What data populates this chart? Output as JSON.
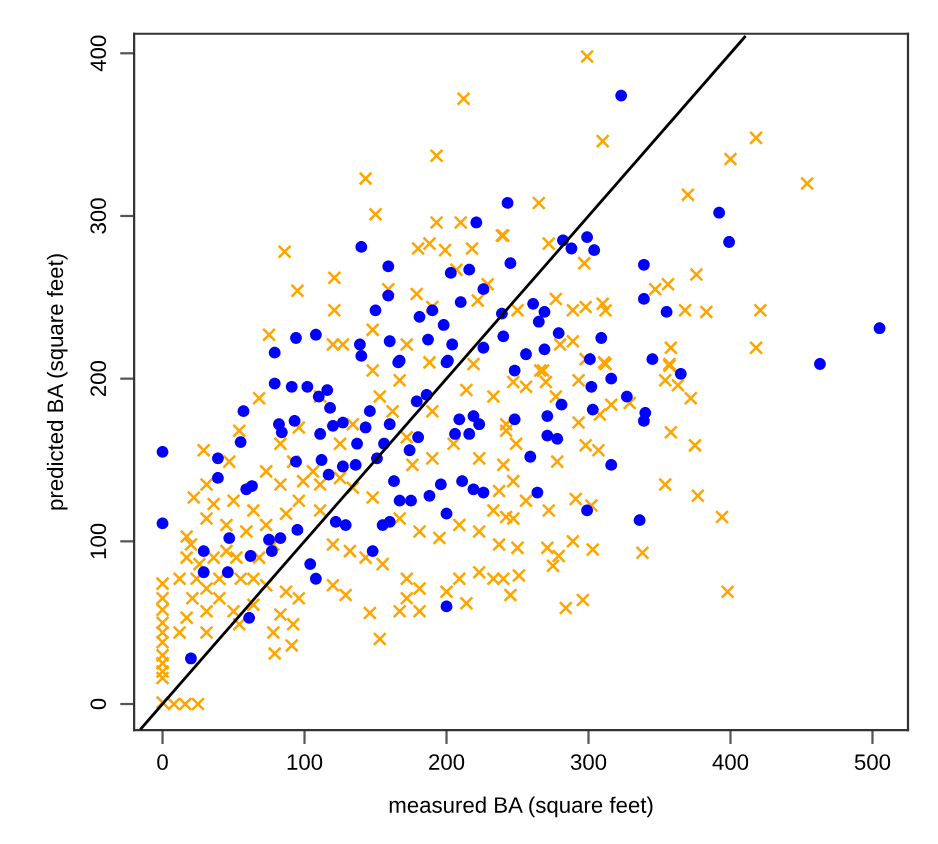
{
  "chart_data": {
    "type": "scatter",
    "xlabel": "measured BA (square feet)",
    "ylabel": "predicted BA (square feet)",
    "xlim": [
      -20,
      525
    ],
    "ylim": [
      -16,
      412
    ],
    "xticks": [
      0,
      100,
      200,
      300,
      400,
      500
    ],
    "yticks": [
      0,
      100,
      200,
      300,
      400
    ],
    "grid": false,
    "series": [
      {
        "marker": "cross",
        "color": "#ffa500",
        "x": [
          212,
          193,
          143,
          150,
          86,
          95,
          121,
          121,
          193,
          210,
          239,
          180,
          188,
          199,
          218,
          207,
          159,
          179,
          190,
          222,
          229,
          75,
          120,
          127,
          148,
          172,
          188,
          219,
          299,
          310,
          265,
          240,
          272,
          297,
          418,
          400,
          370,
          454,
          376,
          356,
          347,
          368,
          383,
          421,
          277,
          250,
          289,
          298,
          310,
          312,
          280,
          289,
          358,
          418,
          298,
          311,
          357,
          268,
          266,
          270,
          247,
          256,
          277,
          293,
          312,
          357,
          354,
          363,
          372,
          308,
          316,
          329,
          293,
          242,
          249,
          298,
          307,
          358,
          375,
          278,
          240,
          247,
          354,
          377,
          394,
          256,
          291,
          302,
          272,
          242,
          289,
          303,
          338,
          250,
          271,
          279,
          275,
          251,
          240,
          245,
          296,
          284,
          398,
          0,
          0,
          0,
          0,
          0,
          0,
          0,
          0,
          0,
          0,
          0,
          8,
          16,
          25,
          17,
          20,
          29,
          47,
          31,
          36,
          50,
          54,
          68,
          83,
          92,
          106,
          125,
          111,
          96,
          87,
          120,
          132,
          143,
          155,
          172,
          181,
          167,
          146,
          153,
          129,
          120,
          79,
          91,
          78,
          92,
          83,
          64,
          50,
          40,
          31,
          21,
          17,
          12,
          24,
          40,
          55,
          64,
          73,
          87,
          96,
          52,
          68,
          78,
          59,
          73,
          64,
          83,
          99,
          111,
          134,
          148,
          167,
          181,
          195,
          209,
          223,
          237,
          233,
          247,
          209,
          223,
          214,
          181,
          172,
          200,
          233,
          176,
          190,
          205,
          214,
          233,
          242,
          223,
          237,
          172,
          153,
          167,
          148,
          111,
          96,
          125,
          134,
          162,
          190,
          73,
          31,
          22,
          45,
          45,
          36,
          26,
          17,
          12,
          31,
          31,
          54
        ],
        "values": [
          372,
          337,
          323,
          301,
          278,
          254,
          262,
          242,
          296,
          296,
          288,
          280,
          283,
          279,
          280,
          267,
          255,
          252,
          244,
          248,
          258,
          227,
          221,
          221,
          230,
          221,
          210,
          209,
          398,
          346,
          308,
          288,
          283,
          271,
          348,
          335,
          313,
          320,
          264,
          258,
          255,
          242,
          241,
          242,
          249,
          242,
          242,
          244,
          246,
          242,
          221,
          223,
          219,
          219,
          212,
          210,
          209,
          205,
          205,
          198,
          198,
          195,
          189,
          199,
          209,
          208,
          199,
          196,
          188,
          178,
          184,
          185,
          173,
          172,
          160,
          159,
          156,
          167,
          159,
          149,
          147,
          137,
          135,
          128,
          115,
          125,
          126,
          122,
          119,
          115,
          100,
          95,
          93,
          96,
          96,
          91,
          85,
          79,
          77,
          67,
          64,
          59,
          69,
          74,
          65,
          58,
          50,
          44,
          38,
          30,
          25,
          20,
          16,
          1,
          0,
          0,
          0,
          103,
          98,
          156,
          149,
          114,
          123,
          125,
          168,
          188,
          160,
          149,
          143,
          139,
          119,
          125,
          117,
          98,
          94,
          90,
          86,
          77,
          71,
          57,
          56,
          40,
          67,
          73,
          31,
          36,
          44,
          49,
          55,
          61,
          57,
          65,
          71,
          65,
          53,
          44,
          77,
          77,
          77,
          77,
          73,
          69,
          65,
          90,
          90,
          98,
          106,
          110,
          119,
          135,
          137,
          135,
          133,
          127,
          114,
          106,
          102,
          110,
          106,
          98,
          119,
          114,
          77,
          81,
          62,
          57,
          65,
          69,
          77,
          147,
          151,
          160,
          193,
          189,
          168,
          151,
          131,
          164,
          189,
          199,
          205,
          189,
          170,
          160,
          172,
          180,
          180,
          143,
          135,
          127,
          110,
          94,
          90,
          86,
          90,
          77,
          57,
          44,
          49
        ]
      },
      {
        "marker": "circle",
        "color": "#0000ff",
        "x": [
          243,
          221,
          140,
          159,
          203,
          216,
          226,
          245,
          150,
          159,
          181,
          190,
          210,
          198,
          239,
          240,
          108,
          94,
          79,
          139,
          140,
          160,
          167,
          187,
          204,
          201,
          226,
          0,
          0,
          39,
          39,
          20,
          29,
          29,
          57,
          79,
          91,
          102,
          110,
          116,
          118,
          82,
          93,
          84,
          111,
          120,
          127,
          55,
          94,
          112,
          59,
          63,
          47,
          46,
          62,
          75,
          77,
          83,
          95,
          104,
          108,
          61,
          146,
          143,
          137,
          156,
          160,
          117,
          127,
          136,
          151,
          163,
          174,
          180,
          179,
          186,
          200,
          166,
          122,
          129,
          155,
          160,
          148,
          167,
          175,
          188,
          200,
          196,
          211,
          219,
          226,
          209,
          206,
          219,
          223,
          216,
          200,
          248,
          323,
          282,
          288,
          299,
          304,
          392,
          399,
          339,
          339,
          355,
          261,
          269,
          265,
          279,
          309,
          269,
          256,
          345,
          365,
          463,
          505,
          301,
          271,
          281,
          302,
          303,
          316,
          327,
          340,
          339,
          271,
          278,
          259,
          316,
          264,
          299,
          336,
          248
        ],
        "values": [
          308,
          296,
          281,
          269,
          265,
          267,
          255,
          271,
          242,
          251,
          238,
          242,
          247,
          233,
          240,
          226,
          227,
          225,
          216,
          221,
          214,
          223,
          211,
          224,
          221,
          211,
          219,
          155,
          111,
          151,
          139,
          28,
          94,
          81,
          180,
          197,
          195,
          195,
          189,
          193,
          182,
          172,
          174,
          167,
          166,
          171,
          173,
          161,
          149,
          150,
          132,
          134,
          102,
          81,
          91,
          101,
          94,
          102,
          107,
          86,
          77,
          53,
          180,
          170,
          160,
          160,
          172,
          141,
          146,
          147,
          151,
          137,
          156,
          164,
          186,
          190,
          210,
          210,
          112,
          110,
          110,
          112,
          94,
          125,
          125,
          128,
          117,
          135,
          137,
          132,
          130,
          175,
          166,
          177,
          172,
          166,
          60,
          205,
          374,
          285,
          280,
          287,
          279,
          302,
          284,
          270,
          249,
          241,
          246,
          241,
          235,
          228,
          225,
          218,
          215,
          212,
          203,
          209,
          231,
          212,
          177,
          184,
          195,
          181,
          200,
          189,
          179,
          174,
          165,
          163,
          152,
          147,
          130,
          119,
          113,
          175
        ]
      },
      {
        "type": "line",
        "color": "#000000",
        "line_style": "solid",
        "marker": "none",
        "x": [
          -15,
          410
        ],
        "values": [
          -15,
          410
        ]
      }
    ]
  }
}
